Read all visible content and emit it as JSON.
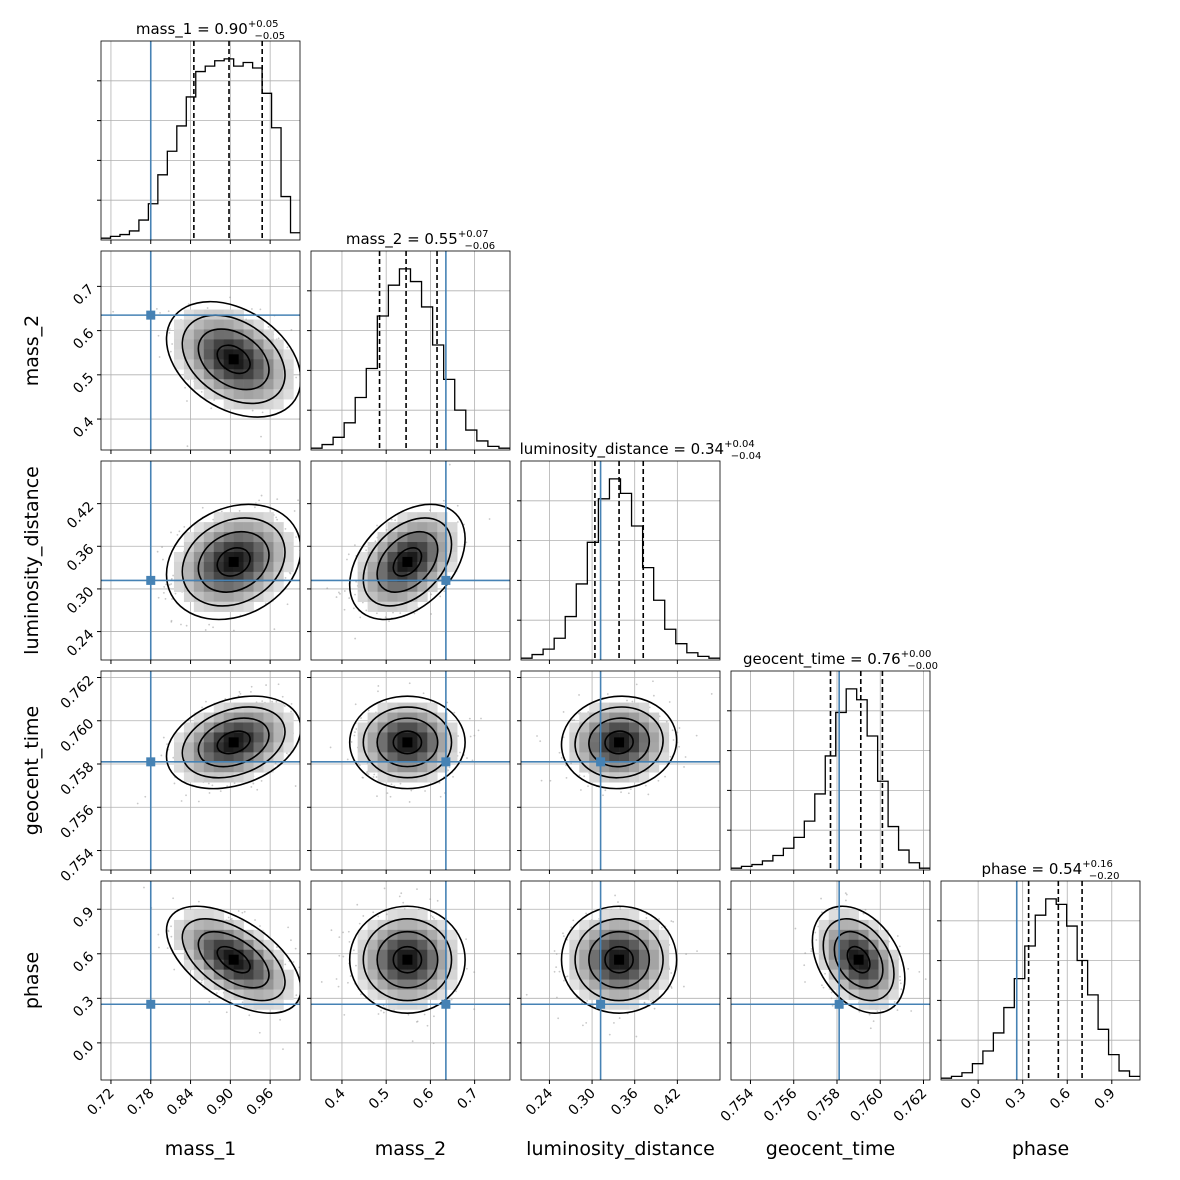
{
  "chart_data": {
    "type": "corner",
    "parameters": [
      "mass_1",
      "mass_2",
      "luminosity_distance",
      "geocent_time",
      "phase"
    ],
    "axis_labels": [
      "mass_1",
      "mass_2",
      "luminosity_distance",
      "geocent_time",
      "phase"
    ],
    "ranges": [
      [
        0.705,
        1.005
      ],
      [
        0.33,
        0.78
      ],
      [
        0.2,
        0.48
      ],
      [
        0.7531,
        0.7623
      ],
      [
        -0.25,
        1.09
      ]
    ],
    "x_ticks": [
      [
        "0.72",
        "0.78",
        "0.84",
        "0.90",
        "0.96"
      ],
      [
        "0.4",
        "0.5",
        "0.6",
        "0.7"
      ],
      [
        "0.24",
        "0.30",
        "0.36",
        "0.42"
      ],
      [
        "0.754",
        "0.756",
        "0.758",
        "0.760",
        "0.762"
      ],
      [
        "0.0",
        "0.3",
        "0.6",
        "0.9"
      ]
    ],
    "y_ticks": [
      [],
      [
        "0.4",
        "0.5",
        "0.6",
        "0.7"
      ],
      [
        "0.24",
        "0.30",
        "0.36",
        "0.42"
      ],
      [
        "0.754",
        "0.756",
        "0.758",
        "0.760",
        "0.762"
      ],
      [
        "0.0",
        "0.3",
        "0.6",
        "0.9"
      ]
    ],
    "injection": [
      0.78,
      0.635,
      0.312,
      0.7581,
      0.26
    ],
    "summary": [
      {
        "param": "mass_1",
        "median": "0.90",
        "plus": "+0.05",
        "minus": "−0.05",
        "q": [
          0.845,
          0.898,
          0.948
        ]
      },
      {
        "param": "mass_2",
        "median": "0.55",
        "plus": "+0.07",
        "minus": "−0.06",
        "q": [
          0.485,
          0.545,
          0.615
        ]
      },
      {
        "param": "luminosity_distance",
        "median": "0.34",
        "plus": "+0.04",
        "minus": "−0.04",
        "q": [
          0.304,
          0.338,
          0.372
        ]
      },
      {
        "param": "geocent_time",
        "median": "0.76",
        "plus": "+0.00",
        "minus": "−0.00",
        "q": [
          0.7577,
          0.7591,
          0.7601
        ]
      },
      {
        "param": "phase",
        "median": "0.54",
        "plus": "+0.16",
        "minus": "−0.20",
        "q": [
          0.34,
          0.54,
          0.7
        ]
      }
    ],
    "histograms": [
      [
        0.01,
        0.02,
        0.03,
        0.05,
        0.11,
        0.2,
        0.36,
        0.49,
        0.63,
        0.79,
        0.93,
        0.96,
        0.99,
        1.0,
        0.96,
        0.98,
        0.95,
        0.81,
        0.62,
        0.24,
        0.04
      ],
      [
        0.01,
        0.03,
        0.07,
        0.15,
        0.29,
        0.45,
        0.74,
        0.91,
        1.0,
        0.93,
        0.79,
        0.58,
        0.39,
        0.22,
        0.11,
        0.05,
        0.02,
        0.01
      ],
      [
        0.01,
        0.03,
        0.06,
        0.12,
        0.24,
        0.42,
        0.65,
        0.89,
        1.0,
        0.92,
        0.74,
        0.51,
        0.33,
        0.17,
        0.09,
        0.04,
        0.02,
        0.01
      ],
      [
        0.01,
        0.02,
        0.03,
        0.05,
        0.08,
        0.12,
        0.18,
        0.27,
        0.42,
        0.63,
        0.87,
        1.0,
        0.94,
        0.74,
        0.49,
        0.24,
        0.11,
        0.04,
        0.01
      ],
      [
        0.01,
        0.02,
        0.04,
        0.09,
        0.16,
        0.26,
        0.4,
        0.56,
        0.74,
        0.91,
        1.0,
        0.97,
        0.85,
        0.66,
        0.47,
        0.28,
        0.14,
        0.05,
        0.02
      ]
    ],
    "pair_stats": [
      {
        "i": 1,
        "j": 0,
        "cx": 0.905,
        "cy": 0.535,
        "sx": 0.045,
        "sy": 0.058,
        "rho": -0.35
      },
      {
        "i": 2,
        "j": 0,
        "cx": 0.905,
        "cy": 0.338,
        "sx": 0.045,
        "sy": 0.036,
        "rho": 0.22
      },
      {
        "i": 2,
        "j": 1,
        "cx": 0.548,
        "cy": 0.338,
        "sx": 0.058,
        "sy": 0.036,
        "rho": 0.4
      },
      {
        "i": 3,
        "j": 0,
        "cx": 0.905,
        "cy": 0.759,
        "sx": 0.045,
        "sy": 0.00095,
        "rho": 0.3
      },
      {
        "i": 3,
        "j": 1,
        "cx": 0.548,
        "cy": 0.759,
        "sx": 0.058,
        "sy": 0.00095,
        "rho": 0.0
      },
      {
        "i": 3,
        "j": 2,
        "cx": 0.338,
        "cy": 0.759,
        "sx": 0.036,
        "sy": 0.00095,
        "rho": 0.05
      },
      {
        "i": 4,
        "j": 0,
        "cx": 0.905,
        "cy": 0.56,
        "sx": 0.045,
        "sy": 0.16,
        "rho": -0.55
      },
      {
        "i": 4,
        "j": 1,
        "cx": 0.548,
        "cy": 0.56,
        "sx": 0.058,
        "sy": 0.16,
        "rho": 0.0
      },
      {
        "i": 4,
        "j": 2,
        "cx": 0.338,
        "cy": 0.56,
        "sx": 0.036,
        "sy": 0.16,
        "rho": 0.0
      },
      {
        "i": 4,
        "j": 3,
        "cx": 0.759,
        "cy": 0.56,
        "sx": 0.00095,
        "sy": 0.16,
        "rho": -0.35
      }
    ],
    "colors": {
      "injection": "#4682b4",
      "contour": "#000000",
      "grid": "#b0b0b0"
    },
    "grid": true
  }
}
